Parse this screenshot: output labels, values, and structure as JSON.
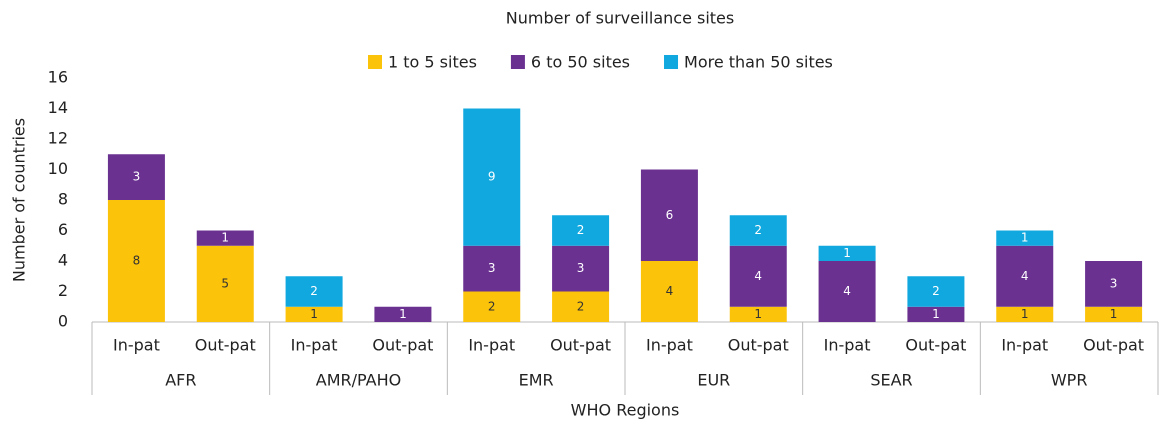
{
  "chart_data": {
    "type": "stacked-bar",
    "title": "Number of surveillance sites",
    "y_label": "Number of countries",
    "x_label": "WHO Regions",
    "categories": [
      "In-pat",
      "Out-pat",
      "In-pat",
      "Out-pat",
      "In-pat",
      "Out-pat",
      "In-pat",
      "Out-pat",
      "In-pat",
      "Out-pat",
      "In-pat",
      "Out-pat"
    ],
    "groups": [
      "AFR",
      "AMR/PAHO",
      "EMR",
      "EUR",
      "SEAR",
      "WPR"
    ],
    "series": [
      {
        "name": "1 to 5 sites",
        "color": "#fcc30b",
        "label_color": "#333333",
        "values": [
          8,
          5,
          1,
          0,
          2,
          2,
          4,
          1,
          0,
          0,
          1,
          1
        ]
      },
      {
        "name": "6 to 50 sites",
        "color": "#6a3191",
        "label_color": "#ffffff",
        "values": [
          3,
          1,
          0,
          1,
          3,
          3,
          6,
          4,
          4,
          1,
          4,
          3
        ]
      },
      {
        "name": "More than 50 sites",
        "color": "#11a8df",
        "label_color": "#ffffff",
        "values": [
          0,
          0,
          2,
          0,
          9,
          2,
          0,
          2,
          1,
          2,
          1,
          0
        ]
      }
    ],
    "ylim": [
      0,
      16
    ],
    "yticks": [
      0,
      2,
      4,
      6,
      8,
      10,
      12,
      14,
      16
    ],
    "grid": false,
    "legend": "top"
  }
}
